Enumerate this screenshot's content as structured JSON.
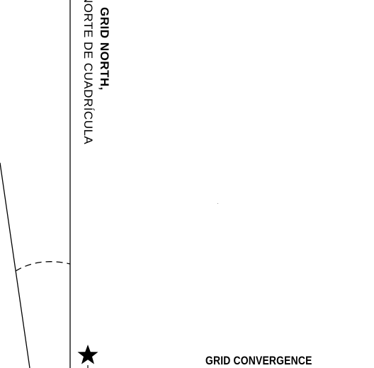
{
  "labels": {
    "grid_north_en": "GRID NORTH,",
    "grid_north_es": "NORTE DE CUADRÍCULA",
    "grid_convergence": "GRID CONVERGENCE"
  },
  "icons": {
    "star": "star-icon"
  },
  "colors": {
    "ink": "#000000",
    "paper": "#ffffff"
  }
}
